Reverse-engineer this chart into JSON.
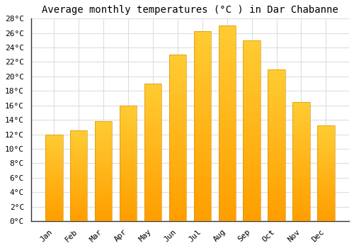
{
  "title": "Average monthly temperatures (°C ) in Dar Chabanne",
  "months": [
    "Jan",
    "Feb",
    "Mar",
    "Apr",
    "May",
    "Jun",
    "Jul",
    "Aug",
    "Sep",
    "Oct",
    "Nov",
    "Dec"
  ],
  "values": [
    12.0,
    12.5,
    13.8,
    16.0,
    19.0,
    23.0,
    26.3,
    27.0,
    25.0,
    21.0,
    16.5,
    13.2
  ],
  "bar_color_top": "#FFB300",
  "bar_color_bottom": "#FFA000",
  "bar_color": "#FFA500",
  "background_color": "#ffffff",
  "grid_color": "#dddddd",
  "ylim": [
    0,
    28
  ],
  "ytick_step": 2,
  "title_fontsize": 10,
  "tick_fontsize": 8,
  "tick_font_family": "monospace"
}
